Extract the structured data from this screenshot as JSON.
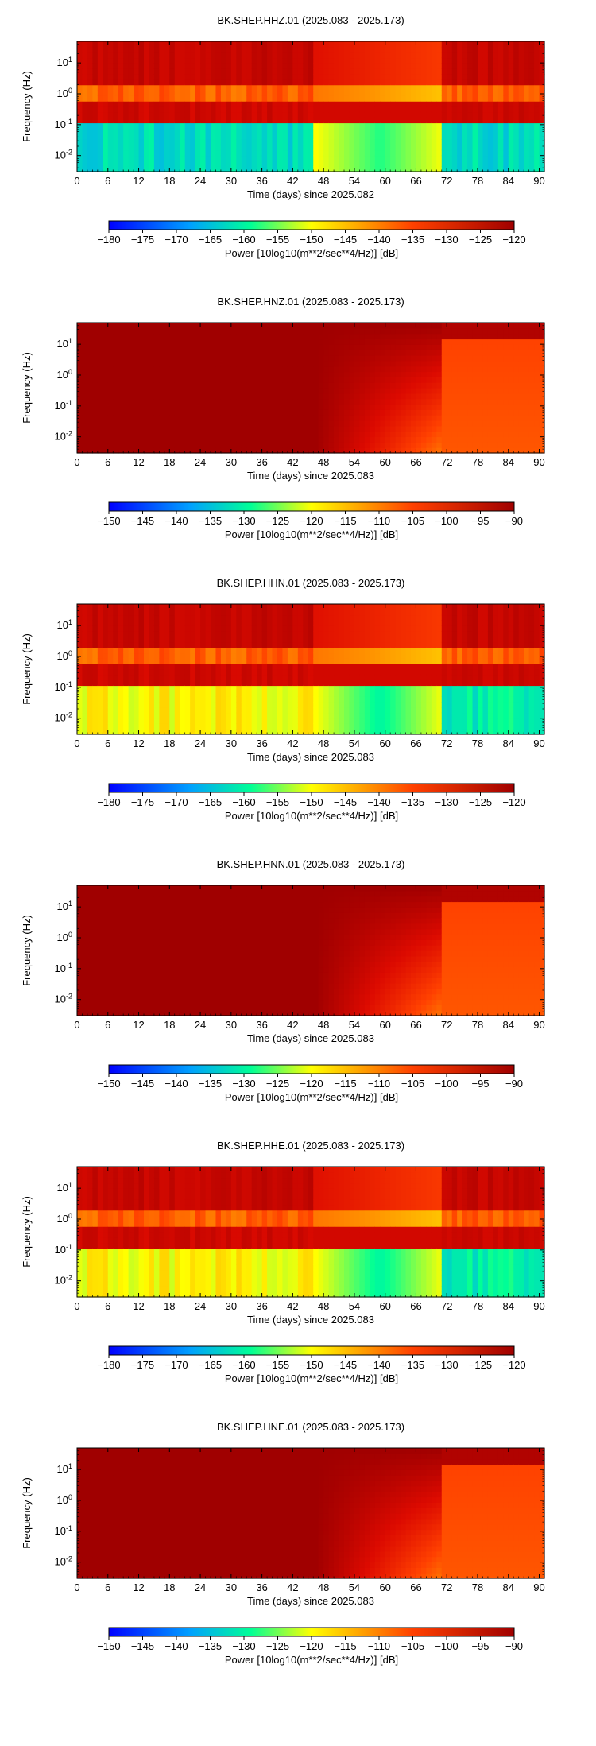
{
  "figure": {
    "xlabel": "Time (days) since",
    "ylabel": "Frequency (Hz)",
    "x_ticks": [
      "0",
      "6",
      "12",
      "18",
      "24",
      "30",
      "36",
      "42",
      "48",
      "54",
      "60",
      "66",
      "72",
      "78",
      "84",
      "90"
    ],
    "y_ticks": [
      {
        "base": "10",
        "exp": "1"
      },
      {
        "base": "10",
        "exp": "0"
      },
      {
        "base": "10",
        "exp": "-1"
      },
      {
        "base": "10",
        "exp": "-2"
      }
    ],
    "colorbar_label": "Power [10log10(m**2/sec**4/Hz)] [dB]"
  },
  "chart_data": [
    {
      "type": "heatmap",
      "title": "BK.SHEP.HHZ.01 (2025.083 - 2025.173)",
      "xlabel": "Time (days) since 2025.082",
      "x_origin": "2025.082",
      "ylabel": "Frequency (Hz)",
      "xlim": [
        0,
        91
      ],
      "ylim_hz": [
        0.003,
        50
      ],
      "y_scale": "log",
      "colorbar": {
        "range_db": [
          -180,
          -120
        ],
        "ticks": [
          -180,
          -175,
          -170,
          -165,
          -160,
          -155,
          -150,
          -145,
          -140,
          -135,
          -130,
          -125,
          -120
        ]
      },
      "data_gap_days": [
        46.5,
        71.5
      ],
      "band_levels_db": [
        {
          "band": "above 2 Hz",
          "before_gap": -124,
          "during_gap": -133,
          "after_gap": -124
        },
        {
          "band": "0.5-2 Hz",
          "before_gap": -140,
          "during_gap": -145,
          "after_gap": -140
        },
        {
          "band": "0.1-0.5 Hz (microseism)",
          "before_gap": -125,
          "during_gap": -123,
          "after_gap": -125
        },
        {
          "band": "below 0.1 Hz",
          "before_gap": -162,
          "during_gap": -155,
          "after_gap": -162
        }
      ]
    },
    {
      "type": "heatmap",
      "title": "BK.SHEP.HNZ.01 (2025.083 - 2025.173)",
      "xlabel": "Time (days) since 2025.083",
      "x_origin": "2025.083",
      "ylabel": "Frequency (Hz)",
      "xlim": [
        0,
        91
      ],
      "ylim_hz": [
        0.003,
        50
      ],
      "y_scale": "log",
      "colorbar": {
        "range_db": [
          -150,
          -90
        ],
        "ticks": [
          -150,
          -145,
          -140,
          -135,
          -130,
          -125,
          -120,
          -115,
          -110,
          -105,
          -100,
          -95,
          -90
        ]
      },
      "data_gap_days": [
        46.5,
        71.5
      ],
      "band_levels_db": [
        {
          "band": "all frequencies",
          "before_gap": -90,
          "during_gap": "trending from -90 to -108 at low frequency",
          "after_gap": -108
        }
      ]
    },
    {
      "type": "heatmap",
      "title": "BK.SHEP.HHN.01 (2025.083 - 2025.173)",
      "xlabel": "Time (days) since 2025.083",
      "x_origin": "2025.083",
      "ylabel": "Frequency (Hz)",
      "xlim": [
        0,
        91
      ],
      "ylim_hz": [
        0.003,
        50
      ],
      "y_scale": "log",
      "colorbar": {
        "range_db": [
          -180,
          -120
        ],
        "ticks": [
          -180,
          -175,
          -170,
          -165,
          -160,
          -155,
          -150,
          -145,
          -140,
          -135,
          -130,
          -125,
          -120
        ]
      },
      "data_gap_days": [
        46.5,
        71.5
      ],
      "band_levels_db": [
        {
          "band": "above 2 Hz",
          "before_gap": -124,
          "during_gap": -133,
          "after_gap": -124
        },
        {
          "band": "0.1-2 Hz",
          "before_gap": -125,
          "during_gap": -130,
          "after_gap": -125
        },
        {
          "band": "below 0.1 Hz",
          "before_gap": -147,
          "during_gap": -155,
          "after_gap": -155
        }
      ]
    },
    {
      "type": "heatmap",
      "title": "BK.SHEP.HNN.01 (2025.083 - 2025.173)",
      "xlabel": "Time (days) since 2025.083",
      "x_origin": "2025.083",
      "ylabel": "Frequency (Hz)",
      "xlim": [
        0,
        91
      ],
      "ylim_hz": [
        0.003,
        50
      ],
      "y_scale": "log",
      "colorbar": {
        "range_db": [
          -150,
          -90
        ],
        "ticks": [
          -150,
          -145,
          -140,
          -135,
          -130,
          -125,
          -120,
          -115,
          -110,
          -105,
          -100,
          -95,
          -90
        ]
      },
      "data_gap_days": [
        46.5,
        71.5
      ],
      "band_levels_db": [
        {
          "band": "all frequencies",
          "before_gap": -90,
          "during_gap": "trending from -90 to -108 at low frequency",
          "after_gap": -108
        }
      ]
    },
    {
      "type": "heatmap",
      "title": "BK.SHEP.HHE.01 (2025.083 - 2025.173)",
      "xlabel": "Time (days) since 2025.083",
      "x_origin": "2025.083",
      "ylabel": "Frequency (Hz)",
      "xlim": [
        0,
        91
      ],
      "ylim_hz": [
        0.003,
        50
      ],
      "y_scale": "log",
      "colorbar": {
        "range_db": [
          -180,
          -120
        ],
        "ticks": [
          -180,
          -175,
          -170,
          -165,
          -160,
          -155,
          -150,
          -145,
          -140,
          -135,
          -130,
          -125,
          -120
        ]
      },
      "data_gap_days": [
        46.5,
        71.5
      ],
      "band_levels_db": [
        {
          "band": "above 2 Hz",
          "before_gap": -124,
          "during_gap": -133,
          "after_gap": -124
        },
        {
          "band": "0.1-2 Hz",
          "before_gap": -125,
          "during_gap": -130,
          "after_gap": -125
        },
        {
          "band": "below 0.1 Hz",
          "before_gap": -147,
          "during_gap": -155,
          "after_gap": -155
        }
      ]
    },
    {
      "type": "heatmap",
      "title": "BK.SHEP.HNE.01 (2025.083 - 2025.173)",
      "xlabel": "Time (days) since 2025.083",
      "x_origin": "2025.083",
      "ylabel": "Frequency (Hz)",
      "xlim": [
        0,
        91
      ],
      "ylim_hz": [
        0.003,
        50
      ],
      "y_scale": "log",
      "colorbar": {
        "range_db": [
          -150,
          -90
        ],
        "ticks": [
          -150,
          -145,
          -140,
          -135,
          -130,
          -125,
          -120,
          -115,
          -110,
          -105,
          -100,
          -95,
          -90
        ]
      },
      "data_gap_days": [
        46.5,
        71.5
      ],
      "band_levels_db": [
        {
          "band": "all frequencies",
          "before_gap": -90,
          "during_gap": "trending from -90 to -108 at low frequency",
          "after_gap": -108
        }
      ]
    }
  ]
}
